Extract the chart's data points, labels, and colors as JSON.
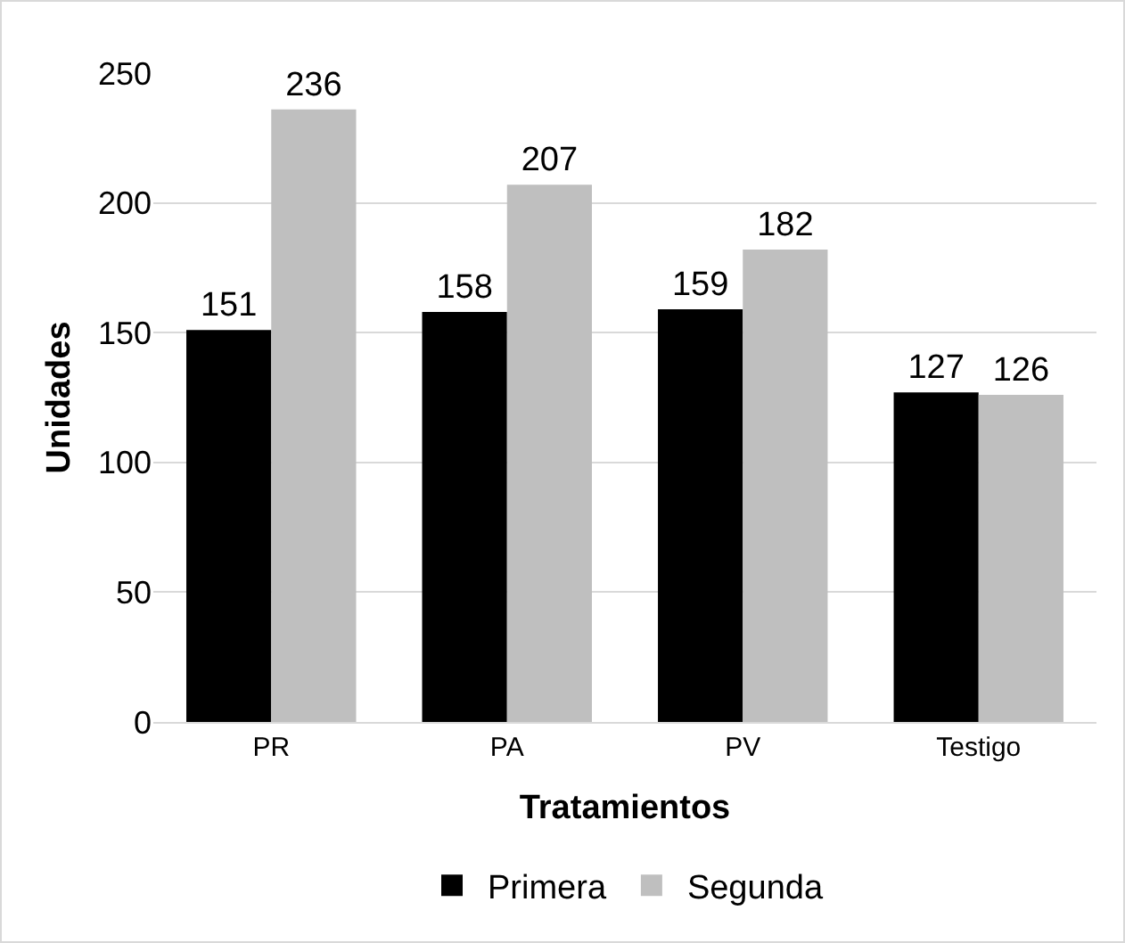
{
  "chart_data": {
    "type": "bar",
    "xlabel": "Tratamientos",
    "ylabel": "Unidades",
    "categories": [
      "PR",
      "PA",
      "PV",
      "Testigo"
    ],
    "series": [
      {
        "name": "Primera",
        "color": "#000000",
        "values": [
          151,
          158,
          159,
          127
        ]
      },
      {
        "name": "Segunda",
        "color": "#bfbfbf",
        "values": [
          236,
          207,
          182,
          126
        ]
      }
    ],
    "ylim": [
      0,
      250
    ],
    "yticks": [
      0,
      50,
      100,
      150,
      200,
      250
    ],
    "grid": "y",
    "legend": "bottom",
    "data_labels": true
  }
}
